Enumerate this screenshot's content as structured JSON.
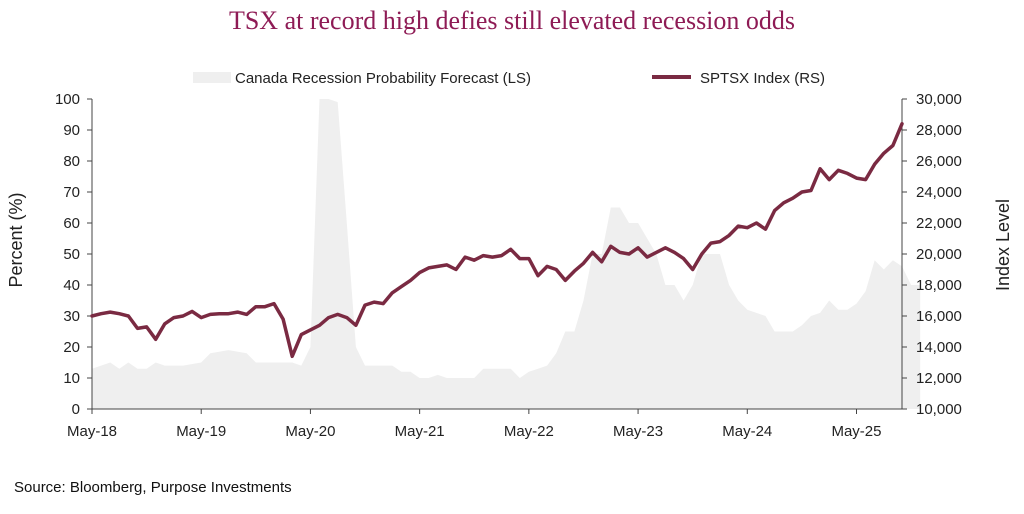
{
  "colors": {
    "title": "#8e1b55",
    "area": "#efefef",
    "line": "#7a2a42",
    "axis": "#444444"
  },
  "chart_data": {
    "type": "line",
    "title": "TSX at record high defies still elevated recession odds",
    "source": "Source: Bloomberg, Purpose Investments",
    "x_ticks": [
      "May-18",
      "May-19",
      "May-20",
      "May-21",
      "May-22",
      "May-23",
      "May-24",
      "May-25"
    ],
    "ylabel_left": "Percent (%)",
    "ylabel_right": "Index Level",
    "ylim_left": [
      0,
      100
    ],
    "ylim_right": [
      10000,
      30000
    ],
    "yticks_left": [
      "0",
      "10",
      "20",
      "30",
      "40",
      "50",
      "60",
      "70",
      "80",
      "90",
      "100"
    ],
    "yticks_right": [
      "10,000",
      "12,000",
      "14,000",
      "16,000",
      "18,000",
      "20,000",
      "22,000",
      "24,000",
      "26,000",
      "28,000",
      "30,000"
    ],
    "series": [
      {
        "name": "Canada Recession Probability Forecast (LS)",
        "type": "area",
        "axis": "left",
        "points": [
          [
            0,
            13
          ],
          [
            2,
            15
          ],
          [
            3,
            13
          ],
          [
            4,
            15
          ],
          [
            5,
            13
          ],
          [
            6,
            13
          ],
          [
            7,
            15
          ],
          [
            8,
            14
          ],
          [
            10,
            14
          ],
          [
            12,
            15
          ],
          [
            13,
            18
          ],
          [
            15,
            19
          ],
          [
            17,
            18
          ],
          [
            18,
            15
          ],
          [
            20,
            15
          ],
          [
            22,
            15
          ],
          [
            23,
            14
          ],
          [
            24,
            20
          ],
          [
            25,
            100
          ],
          [
            26,
            100
          ],
          [
            27,
            99
          ],
          [
            28,
            60
          ],
          [
            29,
            20
          ],
          [
            30,
            14
          ],
          [
            32,
            14
          ],
          [
            33,
            14
          ],
          [
            34,
            12
          ],
          [
            35,
            12
          ],
          [
            36,
            10
          ],
          [
            37,
            10
          ],
          [
            38,
            11
          ],
          [
            39,
            10
          ],
          [
            40,
            10
          ],
          [
            42,
            10
          ],
          [
            43,
            13
          ],
          [
            46,
            13
          ],
          [
            47,
            10
          ],
          [
            48,
            12
          ],
          [
            49,
            13
          ],
          [
            50,
            14
          ],
          [
            51,
            18
          ],
          [
            52,
            25
          ],
          [
            53,
            25
          ],
          [
            54,
            35
          ],
          [
            55,
            50
          ],
          [
            56,
            50
          ],
          [
            57,
            65
          ],
          [
            58,
            65
          ],
          [
            59,
            60
          ],
          [
            60,
            60
          ],
          [
            61,
            55
          ],
          [
            62,
            50
          ],
          [
            63,
            40
          ],
          [
            64,
            40
          ],
          [
            65,
            35
          ],
          [
            66,
            40
          ],
          [
            67,
            50
          ],
          [
            68,
            50
          ],
          [
            69,
            50
          ],
          [
            70,
            40
          ],
          [
            71,
            35
          ],
          [
            72,
            32
          ],
          [
            73,
            31
          ],
          [
            74,
            30
          ],
          [
            75,
            25
          ],
          [
            76,
            25
          ],
          [
            77,
            25
          ],
          [
            78,
            27
          ],
          [
            79,
            30
          ],
          [
            80,
            31
          ],
          [
            81,
            35
          ],
          [
            82,
            32
          ],
          [
            83,
            32
          ],
          [
            84,
            34
          ],
          [
            85,
            38
          ],
          [
            86,
            48
          ],
          [
            87,
            45
          ],
          [
            88,
            48
          ],
          [
            89,
            46
          ],
          [
            90,
            40
          ],
          [
            91,
            40
          ]
        ]
      },
      {
        "name": "SPTSX Index (RS)",
        "type": "line",
        "axis": "right",
        "values": [
          16000,
          16150,
          16250,
          16150,
          16000,
          15200,
          15300,
          14500,
          15500,
          15900,
          16000,
          16300,
          15900,
          16100,
          16150,
          16150,
          16250,
          16100,
          16600,
          16600,
          16800,
          15800,
          13400,
          14800,
          15100,
          15400,
          15900,
          16100,
          15900,
          15400,
          16700,
          16900,
          16800,
          17500,
          17900,
          18300,
          18800,
          19100,
          19200,
          19300,
          19000,
          19800,
          19600,
          19900,
          19800,
          19900,
          20300,
          19700,
          19700,
          18600,
          19200,
          19000,
          18300,
          18900,
          19400,
          20100,
          19500,
          20500,
          20100,
          20000,
          20400,
          19800,
          20100,
          20400,
          20100,
          19700,
          19000,
          20000,
          20700,
          20800,
          21200,
          21800,
          21700,
          22000,
          21600,
          22800,
          23300,
          23600,
          24000,
          24100,
          25500,
          24800,
          25400,
          25200,
          24900,
          24800,
          25800,
          26500,
          27000,
          28400
        ]
      }
    ]
  }
}
